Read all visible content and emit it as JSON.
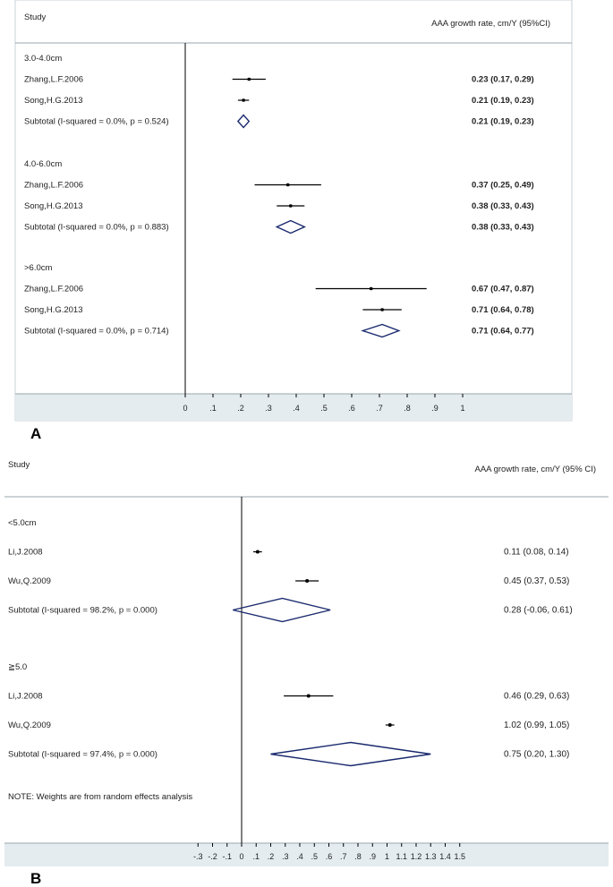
{
  "colors": {
    "axis_band": "#e4ecf0",
    "diamond": "#1a2a6e",
    "ci_line": "#000000",
    "text": "#222222"
  },
  "chart_data": [
    {
      "type": "forest",
      "panel_label": "A",
      "study_header": "Study",
      "estimate_header": "AAA growth rate, cm/Y (95%CI)",
      "xlim": [
        0,
        1
      ],
      "x_ticks": [
        0,
        0.1,
        0.2,
        0.3,
        0.4,
        0.5,
        0.6,
        0.7,
        0.8,
        0.9,
        1
      ],
      "x_tick_labels": [
        "0",
        ".1",
        ".2",
        ".3",
        ".4",
        ".5",
        ".6",
        ".7",
        ".8",
        ".9",
        "1"
      ],
      "groups": [
        {
          "label": "3.0-4.0cm",
          "studies": [
            {
              "name": "Zhang,L.F.2006",
              "est": 0.23,
              "lo": 0.17,
              "hi": 0.29,
              "text": "0.23 (0.17, 0.29)"
            },
            {
              "name": "Song,H.G.2013",
              "est": 0.21,
              "lo": 0.19,
              "hi": 0.23,
              "text": "0.21 (0.19, 0.23)"
            }
          ],
          "subtotal": {
            "label": "Subtotal  (I-squared = 0.0%, p = 0.524)",
            "est": 0.21,
            "lo": 0.19,
            "hi": 0.23,
            "text": "0.21 (0.19, 0.23)"
          }
        },
        {
          "label": "4.0-6.0cm",
          "studies": [
            {
              "name": "Zhang,L.F.2006",
              "est": 0.37,
              "lo": 0.25,
              "hi": 0.49,
              "text": "0.37 (0.25, 0.49)"
            },
            {
              "name": "Song,H.G.2013",
              "est": 0.38,
              "lo": 0.33,
              "hi": 0.43,
              "text": "0.38 (0.33, 0.43)"
            }
          ],
          "subtotal": {
            "label": "Subtotal  (I-squared = 0.0%, p = 0.883)",
            "est": 0.38,
            "lo": 0.33,
            "hi": 0.43,
            "text": "0.38 (0.33, 0.43)"
          }
        },
        {
          "label": ">6.0cm",
          "studies": [
            {
              "name": "Zhang,L.F.2006",
              "est": 0.67,
              "lo": 0.47,
              "hi": 0.87,
              "text": "0.67 (0.47, 0.87)"
            },
            {
              "name": "Song,H.G.2013",
              "est": 0.71,
              "lo": 0.64,
              "hi": 0.78,
              "text": "0.71 (0.64, 0.78)"
            }
          ],
          "subtotal": {
            "label": "Subtotal  (I-squared = 0.0%, p = 0.714)",
            "est": 0.71,
            "lo": 0.64,
            "hi": 0.77,
            "text": "0.71 (0.64, 0.77)"
          }
        }
      ],
      "note": ""
    },
    {
      "type": "forest",
      "panel_label": "B",
      "study_header": "Study",
      "estimate_header": "AAA growth rate, cm/Y (95% CI)",
      "xlim": [
        -0.3,
        1.5
      ],
      "x_ticks": [
        -0.3,
        -0.2,
        -0.1,
        0,
        0.1,
        0.2,
        0.3,
        0.4,
        0.5,
        0.6,
        0.7,
        0.8,
        0.9,
        1.0,
        1.1,
        1.2,
        1.3,
        1.4,
        1.5
      ],
      "x_tick_labels": [
        "-.3",
        "-.2",
        "-.1",
        "0",
        ".1",
        ".2",
        ".3",
        ".4",
        ".5",
        ".6",
        ".7",
        ".8",
        ".9",
        "1",
        "1.1",
        "1.2",
        "1.3",
        "1.4",
        "1.5"
      ],
      "groups": [
        {
          "label": "<5.0cm",
          "studies": [
            {
              "name": "Li,J.2008",
              "est": 0.11,
              "lo": 0.08,
              "hi": 0.14,
              "text": "0.11 (0.08, 0.14)"
            },
            {
              "name": "Wu,Q.2009",
              "est": 0.45,
              "lo": 0.37,
              "hi": 0.53,
              "text": "0.45 (0.37, 0.53)"
            }
          ],
          "subtotal": {
            "label": "Subtotal  (I-squared = 98.2%, p = 0.000)",
            "est": 0.28,
            "lo": -0.06,
            "hi": 0.61,
            "text": "0.28 (-0.06, 0.61)"
          }
        },
        {
          "label": "≧5.0",
          "studies": [
            {
              "name": "Li,J.2008",
              "est": 0.46,
              "lo": 0.29,
              "hi": 0.63,
              "text": "0.46 (0.29, 0.63)"
            },
            {
              "name": "Wu,Q.2009",
              "est": 1.02,
              "lo": 0.99,
              "hi": 1.05,
              "text": "1.02 (0.99, 1.05)"
            }
          ],
          "subtotal": {
            "label": "Subtotal  (I-squared = 97.4%, p = 0.000)",
            "est": 0.75,
            "lo": 0.2,
            "hi": 1.3,
            "text": "0.75 (0.20, 1.30)"
          }
        }
      ],
      "note": "NOTE: Weights are from random effects analysis"
    }
  ]
}
